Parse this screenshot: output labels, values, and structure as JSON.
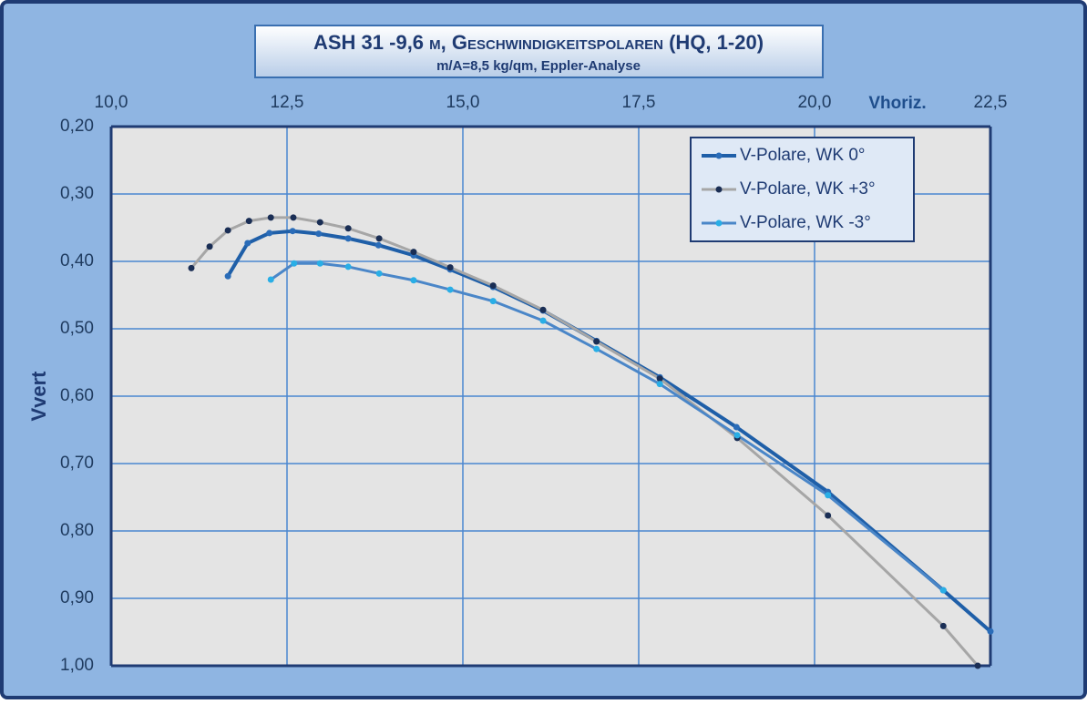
{
  "chart_data": {
    "type": "line",
    "title": "ASH 31 -9,6 m, Geschwindigkeitspolaren (HQ, 1-20)",
    "subtitle": "m/A=8,5 kg/qm, Eppler-Analyse",
    "x_label": "Vhoriz.",
    "y_label": "Vvert",
    "xlim": [
      10,
      22.5
    ],
    "xticks": [
      {
        "value": 10,
        "label": "10,0"
      },
      {
        "value": 12.5,
        "label": "12,5"
      },
      {
        "value": 15,
        "label": "15,0"
      },
      {
        "value": 17.5,
        "label": "17,5"
      },
      {
        "value": 20,
        "label": "20,0"
      },
      {
        "value": 22.5,
        "label": "22,5"
      }
    ],
    "ylim": [
      0.2,
      1.0
    ],
    "yticks": [
      {
        "value": 0.2,
        "label": "0,20"
      },
      {
        "value": 0.3,
        "label": "0,30"
      },
      {
        "value": 0.4,
        "label": "0,40"
      },
      {
        "value": 0.5,
        "label": "0,50"
      },
      {
        "value": 0.6,
        "label": "0,60"
      },
      {
        "value": 0.7,
        "label": "0,70"
      },
      {
        "value": 0.8,
        "label": "0,80"
      },
      {
        "value": 0.9,
        "label": "0,90"
      },
      {
        "value": 1.0,
        "label": "1,00"
      }
    ],
    "invert_y": true,
    "grid": true,
    "legend": "upper right",
    "series": [
      {
        "name": "V-Polare, WK 0°",
        "color": "#1f5fa8",
        "marker_color": "#2a6cb8",
        "width": 4,
        "x": [
          11.66,
          11.94,
          12.25,
          12.58,
          12.95,
          13.37,
          13.8,
          14.3,
          14.82,
          15.43,
          16.14,
          16.9,
          17.8,
          18.89,
          20.19,
          21.83,
          22.5
        ],
        "values": [
          0.422,
          0.373,
          0.358,
          0.355,
          0.359,
          0.366,
          0.376,
          0.391,
          0.412,
          0.438,
          0.473,
          0.518,
          0.572,
          0.646,
          0.742,
          0.888,
          0.949
        ]
      },
      {
        "name": "V-Polare, WK +3°",
        "color": "#a6a6a6",
        "marker_color": "#1a2e55",
        "width": 3,
        "x": [
          11.14,
          11.4,
          11.66,
          11.96,
          12.27,
          12.59,
          12.97,
          13.37,
          13.81,
          14.3,
          14.82,
          15.43,
          16.14,
          16.9,
          17.8,
          18.9,
          20.19,
          21.83,
          22.32
        ],
        "values": [
          0.41,
          0.378,
          0.354,
          0.34,
          0.335,
          0.335,
          0.342,
          0.351,
          0.366,
          0.386,
          0.409,
          0.436,
          0.472,
          0.519,
          0.574,
          0.662,
          0.777,
          0.941,
          1.0
        ]
      },
      {
        "name": "V-Polare, WK -3°",
        "color": "#4a86c8",
        "marker_color": "#29aee6",
        "width": 3,
        "x": [
          12.27,
          12.6,
          12.97,
          13.37,
          13.81,
          14.3,
          14.82,
          15.43,
          16.14,
          16.9,
          17.8,
          18.9,
          20.19,
          21.83
        ],
        "values": [
          0.427,
          0.403,
          0.403,
          0.408,
          0.418,
          0.428,
          0.442,
          0.459,
          0.488,
          0.53,
          0.582,
          0.658,
          0.747,
          0.888
        ]
      }
    ]
  }
}
